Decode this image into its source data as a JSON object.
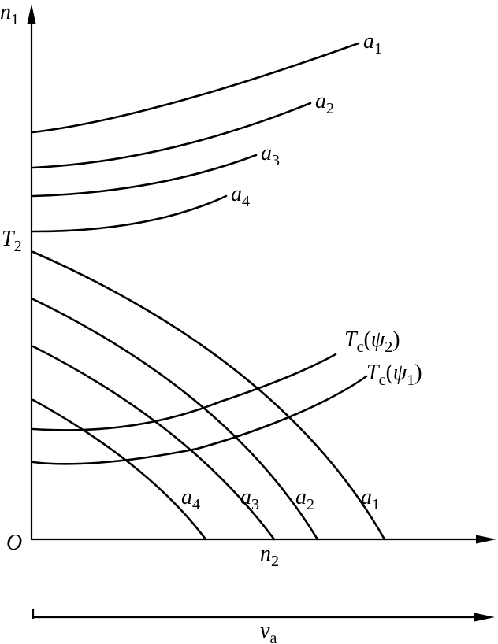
{
  "axes": {
    "y_axis_label": {
      "main": "n",
      "sub": "1"
    },
    "origin_label": "O",
    "y_tick_label": {
      "main": "T",
      "sub": "2"
    },
    "x_tick_label": {
      "main": "n",
      "sub": "2"
    },
    "bottom_axis_label": {
      "main": "v",
      "sub": "a"
    }
  },
  "upper_curves": [
    {
      "main": "a",
      "sub": "1"
    },
    {
      "main": "a",
      "sub": "2"
    },
    {
      "main": "a",
      "sub": "3"
    },
    {
      "main": "a",
      "sub": "4"
    }
  ],
  "lower_curves": [
    {
      "main": "a",
      "sub": "1"
    },
    {
      "main": "a",
      "sub": "2"
    },
    {
      "main": "a",
      "sub": "3"
    },
    {
      "main": "a",
      "sub": "4"
    }
  ],
  "tc_curves": [
    {
      "main": "T",
      "sub": "c",
      "open": "(",
      "psi": "ψ",
      "psi_sub": "2",
      "close": ")"
    },
    {
      "main": "T",
      "sub": "c",
      "open": "(",
      "psi": "ψ",
      "psi_sub": "1",
      "close": ")"
    }
  ],
  "colors": {
    "ink": "#000000",
    "background": "#ffffff"
  }
}
